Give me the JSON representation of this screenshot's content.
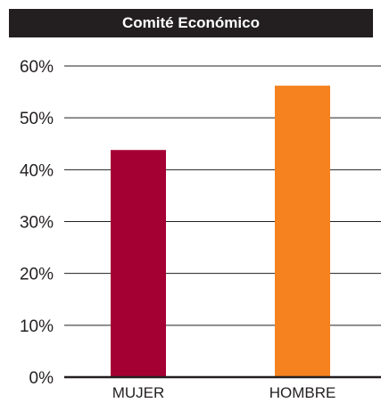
{
  "chart_data": {
    "type": "bar",
    "title": "Comité Económico",
    "categories": [
      "MUJER",
      "HOMBRE"
    ],
    "values": [
      43.8,
      56.2
    ],
    "unit": "%",
    "ylim": [
      0,
      60
    ],
    "yticks": [
      0,
      10,
      20,
      30,
      40,
      50,
      60
    ],
    "ytick_labels": [
      "0%",
      "10%",
      "20%",
      "30%",
      "40%",
      "50%",
      "60%"
    ],
    "grid": true,
    "colors": [
      "#a50034",
      "#f5821f"
    ]
  }
}
